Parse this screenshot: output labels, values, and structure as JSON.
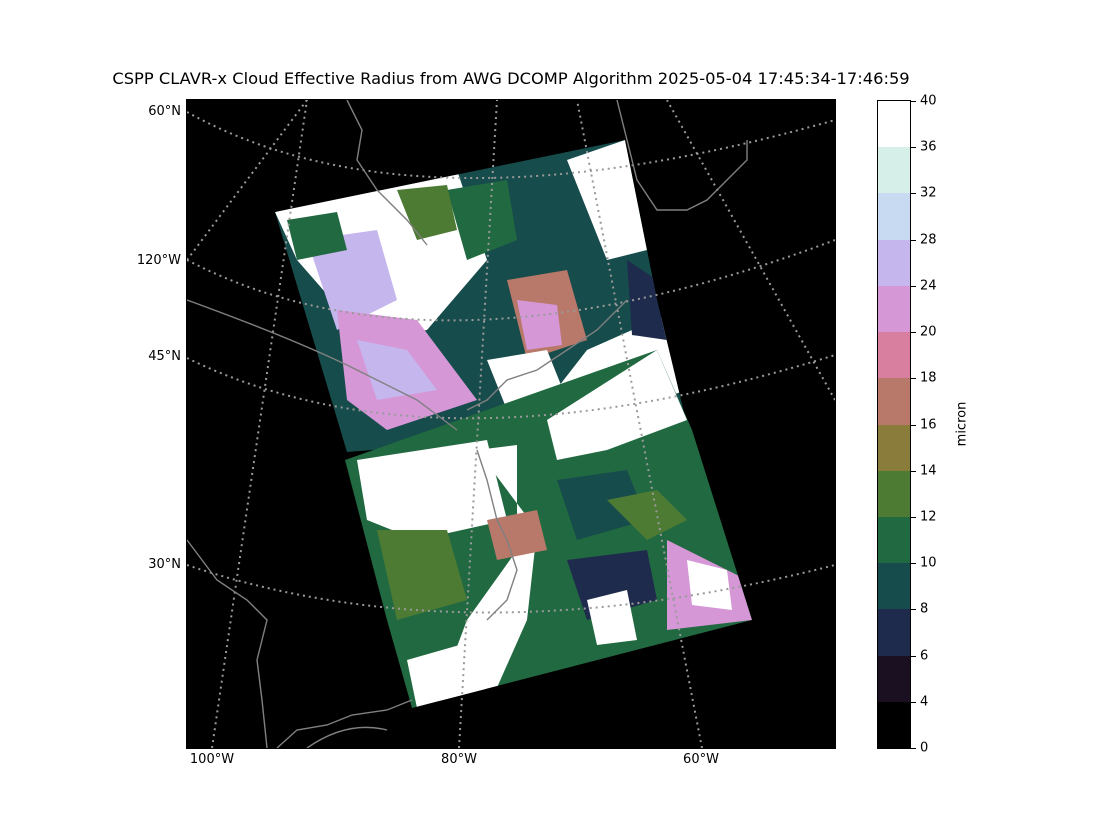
{
  "title": "CSPP CLAVR-x Cloud Effective Radius from AWG DCOMP Algorithm 2025-05-04 17:45:34-17:46:59",
  "lat_labels": [
    "60°N",
    "45°N",
    "30°N"
  ],
  "lon_labels": [
    "120°W",
    "100°W",
    "80°W",
    "60°W"
  ],
  "colorbar": {
    "unit": "micron",
    "ticks": [
      "40",
      "36",
      "32",
      "28",
      "24",
      "20",
      "18",
      "16",
      "14",
      "12",
      "10",
      "8",
      "6",
      "4",
      "0"
    ],
    "colors": [
      "#ffffff",
      "#d6efe8",
      "#c7daf2",
      "#c6b6ee",
      "#d597d6",
      "#d87f9f",
      "#b8786a",
      "#8a7c3a",
      "#4e7b34",
      "#216941",
      "#164c4b",
      "#1e2b4c",
      "#1b1022",
      "#000000"
    ]
  },
  "colors": {
    "background": "#000000",
    "coastline": "#808080",
    "graticule": "#9a9a9a"
  }
}
